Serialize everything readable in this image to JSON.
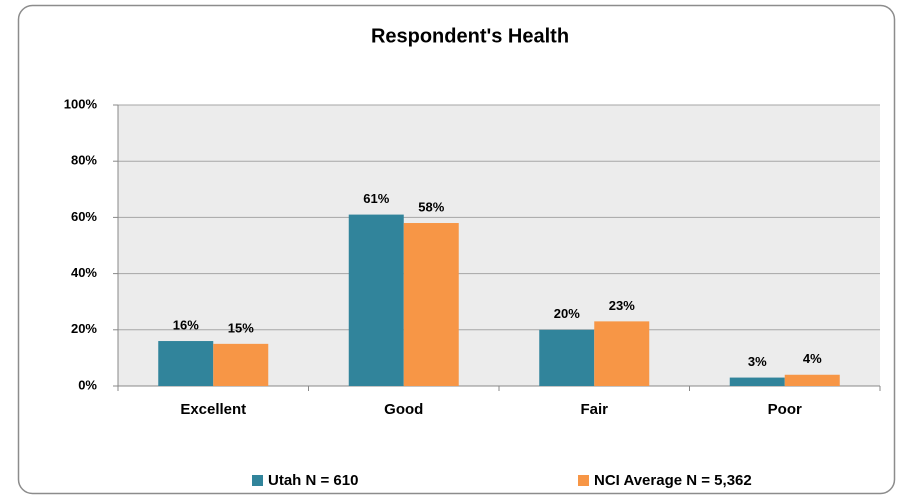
{
  "chart_data": {
    "type": "bar",
    "title": "Respondent's Health",
    "categories": [
      "Excellent",
      "Good",
      "Fair",
      "Poor"
    ],
    "series": [
      {
        "name": "Utah N = 610",
        "color": "#31849b",
        "values": [
          16,
          61,
          20,
          3
        ],
        "value_labels": [
          "16%",
          "61%",
          "20%",
          "3%"
        ]
      },
      {
        "name": "NCI Average N = 5,362",
        "color": "#f79646",
        "values": [
          15,
          58,
          23,
          4
        ],
        "value_labels": [
          "15%",
          "58%",
          "23%",
          "4%"
        ]
      }
    ],
    "ylim": [
      0,
      100
    ],
    "yticks": [
      {
        "value": 0,
        "label": "0%"
      },
      {
        "value": 20,
        "label": "20%"
      },
      {
        "value": 40,
        "label": "40%"
      },
      {
        "value": 60,
        "label": "60%"
      },
      {
        "value": 80,
        "label": "80%"
      },
      {
        "value": 100,
        "label": "100%"
      }
    ],
    "grid": true,
    "legend": "bottom"
  }
}
